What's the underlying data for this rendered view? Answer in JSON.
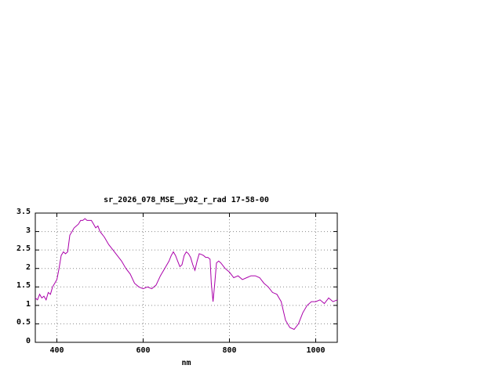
{
  "chart_data": {
    "type": "line",
    "title": "sr_2026_078_MSE__y02_r_rad 17-58-00",
    "xlabel": "nm",
    "ylabel": "",
    "xlim": [
      350,
      1050
    ],
    "ylim": [
      0,
      3.5
    ],
    "xticks": [
      400,
      600,
      800,
      1000
    ],
    "xtick_labels": [
      "400",
      "600",
      "800",
      "1000"
    ],
    "yticks": [
      0,
      0.5,
      1,
      1.5,
      2,
      2.5,
      3,
      3.5
    ],
    "ytick_labels": [
      "0",
      "0.5",
      "1",
      "1.5",
      "2",
      "2.5",
      "3",
      "3.5"
    ],
    "grid": true,
    "legend": "none",
    "line_color": "#aa00aa",
    "x": [
      350,
      355,
      360,
      365,
      370,
      375,
      380,
      385,
      390,
      395,
      400,
      405,
      410,
      415,
      420,
      425,
      430,
      435,
      440,
      445,
      450,
      455,
      460,
      465,
      470,
      475,
      480,
      485,
      490,
      495,
      500,
      510,
      520,
      530,
      540,
      550,
      560,
      570,
      580,
      590,
      600,
      610,
      620,
      630,
      640,
      650,
      660,
      665,
      670,
      675,
      680,
      685,
      690,
      695,
      700,
      705,
      710,
      715,
      720,
      725,
      730,
      735,
      740,
      745,
      750,
      755,
      758,
      762,
      766,
      770,
      775,
      780,
      790,
      800,
      810,
      820,
      830,
      840,
      850,
      860,
      870,
      880,
      890,
      900,
      910,
      920,
      930,
      940,
      950,
      960,
      970,
      980,
      990,
      1000,
      1010,
      1020,
      1030,
      1040,
      1050
    ],
    "values": [
      1.2,
      1.15,
      1.3,
      1.2,
      1.25,
      1.15,
      1.35,
      1.3,
      1.5,
      1.6,
      1.7,
      2.0,
      2.35,
      2.45,
      2.4,
      2.45,
      2.9,
      3.0,
      3.1,
      3.15,
      3.2,
      3.3,
      3.3,
      3.35,
      3.3,
      3.3,
      3.3,
      3.2,
      3.1,
      3.15,
      3.0,
      2.85,
      2.65,
      2.5,
      2.35,
      2.2,
      2.0,
      1.85,
      1.6,
      1.5,
      1.45,
      1.5,
      1.45,
      1.55,
      1.8,
      2.0,
      2.2,
      2.35,
      2.45,
      2.35,
      2.2,
      2.05,
      2.1,
      2.35,
      2.45,
      2.4,
      2.3,
      2.1,
      1.95,
      2.2,
      2.4,
      2.38,
      2.35,
      2.3,
      2.3,
      2.25,
      1.6,
      1.1,
      1.6,
      2.15,
      2.2,
      2.15,
      2.0,
      1.9,
      1.75,
      1.8,
      1.7,
      1.75,
      1.8,
      1.8,
      1.75,
      1.6,
      1.5,
      1.35,
      1.3,
      1.1,
      0.6,
      0.4,
      0.35,
      0.5,
      0.8,
      1.0,
      1.1,
      1.1,
      1.15,
      1.05,
      1.2,
      1.1,
      1.15
    ]
  }
}
